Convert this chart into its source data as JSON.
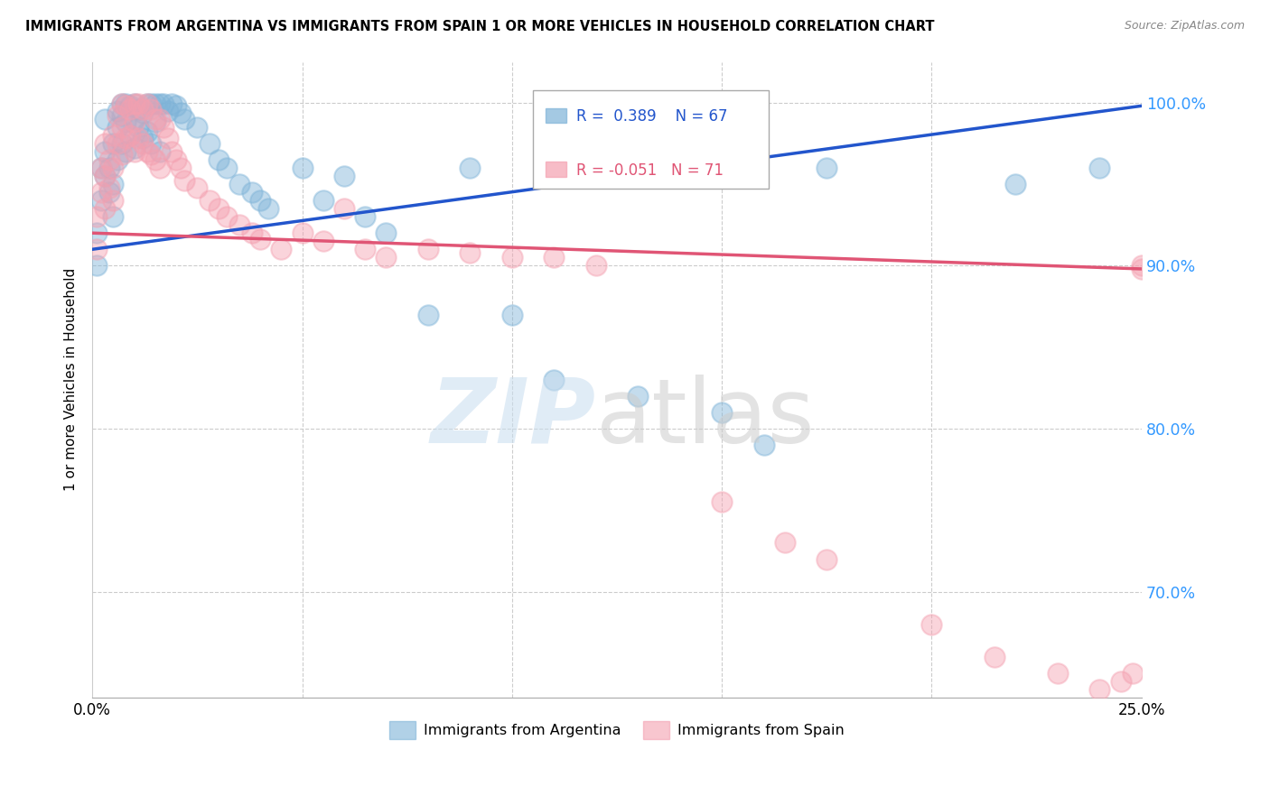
{
  "title": "IMMIGRANTS FROM ARGENTINA VS IMMIGRANTS FROM SPAIN 1 OR MORE VEHICLES IN HOUSEHOLD CORRELATION CHART",
  "source": "Source: ZipAtlas.com",
  "ylabel": "1 or more Vehicles in Household",
  "ytick_labels": [
    "100.0%",
    "90.0%",
    "80.0%",
    "70.0%"
  ],
  "ytick_values": [
    1.0,
    0.9,
    0.8,
    0.7
  ],
  "xlim": [
    0.0,
    0.25
  ],
  "ylim": [
    0.635,
    1.025
  ],
  "R_argentina": 0.389,
  "N_argentina": 67,
  "R_spain": -0.051,
  "N_spain": 71,
  "legend_label_argentina": "Immigrants from Argentina",
  "legend_label_spain": "Immigrants from Spain",
  "color_argentina": "#7EB3D8",
  "color_spain": "#F4A0B0",
  "trendline_color_argentina": "#2255CC",
  "trendline_color_spain": "#E05575",
  "trendline_argentina_x0": 0.0,
  "trendline_argentina_y0": 0.91,
  "trendline_argentina_x1": 0.25,
  "trendline_argentina_y1": 0.998,
  "trendline_spain_x0": 0.0,
  "trendline_spain_y0": 0.92,
  "trendline_spain_x1": 0.25,
  "trendline_spain_y1": 0.898,
  "argentina_x": [
    0.001,
    0.001,
    0.002,
    0.002,
    0.003,
    0.003,
    0.003,
    0.004,
    0.004,
    0.005,
    0.005,
    0.005,
    0.006,
    0.006,
    0.006,
    0.007,
    0.007,
    0.007,
    0.008,
    0.008,
    0.008,
    0.009,
    0.009,
    0.01,
    0.01,
    0.01,
    0.011,
    0.011,
    0.012,
    0.012,
    0.013,
    0.013,
    0.014,
    0.014,
    0.015,
    0.015,
    0.016,
    0.016,
    0.017,
    0.018,
    0.019,
    0.02,
    0.021,
    0.022,
    0.025,
    0.028,
    0.03,
    0.032,
    0.035,
    0.038,
    0.04,
    0.042,
    0.05,
    0.055,
    0.06,
    0.065,
    0.07,
    0.08,
    0.09,
    0.1,
    0.11,
    0.13,
    0.15,
    0.16,
    0.175,
    0.22,
    0.24
  ],
  "argentina_y": [
    0.92,
    0.9,
    0.96,
    0.94,
    0.955,
    0.97,
    0.99,
    0.96,
    0.945,
    0.975,
    0.95,
    0.93,
    0.995,
    0.985,
    0.965,
    0.999,
    0.992,
    0.975,
    0.999,
    0.988,
    0.97,
    0.998,
    0.98,
    0.999,
    0.99,
    0.972,
    0.996,
    0.985,
    0.994,
    0.978,
    0.999,
    0.982,
    0.999,
    0.975,
    0.999,
    0.988,
    0.999,
    0.97,
    0.999,
    0.995,
    0.999,
    0.998,
    0.994,
    0.99,
    0.985,
    0.975,
    0.965,
    0.96,
    0.95,
    0.945,
    0.94,
    0.935,
    0.96,
    0.94,
    0.955,
    0.93,
    0.92,
    0.87,
    0.96,
    0.87,
    0.83,
    0.82,
    0.81,
    0.79,
    0.96,
    0.95,
    0.96
  ],
  "spain_x": [
    0.001,
    0.001,
    0.002,
    0.002,
    0.003,
    0.003,
    0.003,
    0.004,
    0.004,
    0.005,
    0.005,
    0.005,
    0.006,
    0.006,
    0.007,
    0.007,
    0.007,
    0.008,
    0.008,
    0.009,
    0.009,
    0.01,
    0.01,
    0.01,
    0.011,
    0.011,
    0.012,
    0.012,
    0.013,
    0.013,
    0.014,
    0.014,
    0.015,
    0.015,
    0.016,
    0.016,
    0.017,
    0.018,
    0.019,
    0.02,
    0.021,
    0.022,
    0.025,
    0.028,
    0.03,
    0.032,
    0.035,
    0.038,
    0.04,
    0.045,
    0.05,
    0.055,
    0.06,
    0.065,
    0.07,
    0.08,
    0.09,
    0.1,
    0.11,
    0.12,
    0.15,
    0.165,
    0.175,
    0.2,
    0.215,
    0.23,
    0.24,
    0.245,
    0.248,
    0.25,
    0.25
  ],
  "spain_y": [
    0.93,
    0.91,
    0.96,
    0.945,
    0.975,
    0.955,
    0.935,
    0.965,
    0.948,
    0.98,
    0.96,
    0.94,
    0.992,
    0.975,
    0.999,
    0.985,
    0.968,
    0.998,
    0.978,
    0.996,
    0.98,
    0.999,
    0.988,
    0.97,
    0.999,
    0.978,
    0.996,
    0.975,
    0.999,
    0.97,
    0.996,
    0.968,
    0.99,
    0.965,
    0.99,
    0.96,
    0.985,
    0.978,
    0.97,
    0.965,
    0.96,
    0.952,
    0.948,
    0.94,
    0.935,
    0.93,
    0.925,
    0.92,
    0.916,
    0.91,
    0.92,
    0.915,
    0.935,
    0.91,
    0.905,
    0.91,
    0.908,
    0.905,
    0.905,
    0.9,
    0.755,
    0.73,
    0.72,
    0.68,
    0.66,
    0.65,
    0.64,
    0.645,
    0.65,
    0.9,
    0.898
  ]
}
